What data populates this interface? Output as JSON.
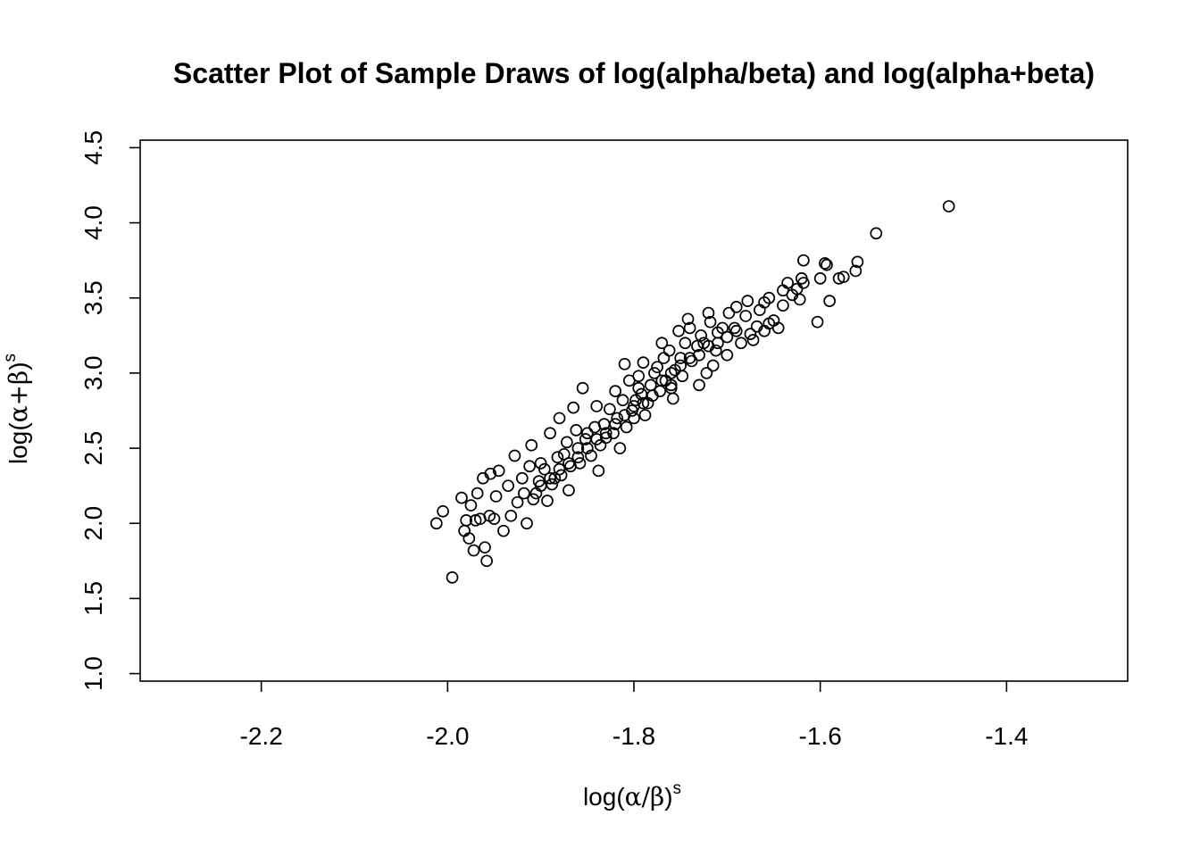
{
  "chart_data": {
    "type": "scatter",
    "title": "Scatter Plot of Sample Draws of log(alpha/beta) and log(alpha+beta)",
    "xlabel": {
      "prefix": "log(",
      "a": "α",
      "op": "/",
      "b": "β",
      "suffix": ")",
      "sup": "s"
    },
    "ylabel": {
      "prefix": "log(",
      "a": "α",
      "op": "+",
      "b": "β",
      "suffix": ")",
      "sup": "s"
    },
    "xlim": [
      -2.33,
      -1.27
    ],
    "ylim": [
      0.95,
      4.55
    ],
    "x_ticks": [
      {
        "value": -2.2,
        "label": "-2.2"
      },
      {
        "value": -2.0,
        "label": "-2.0"
      },
      {
        "value": -1.8,
        "label": "-1.8"
      },
      {
        "value": -1.6,
        "label": "-1.6"
      },
      {
        "value": -1.4,
        "label": "-1.4"
      }
    ],
    "y_ticks": [
      {
        "value": 1.0,
        "label": "1.0"
      },
      {
        "value": 1.5,
        "label": "1.5"
      },
      {
        "value": 2.0,
        "label": "2.0"
      },
      {
        "value": 2.5,
        "label": "2.5"
      },
      {
        "value": 3.0,
        "label": "3.0"
      },
      {
        "value": 3.5,
        "label": "3.5"
      },
      {
        "value": 4.0,
        "label": "4.0"
      },
      {
        "value": 4.5,
        "label": "4.5"
      }
    ],
    "grid": false,
    "legend": "none",
    "marker": "open-circle",
    "points": [
      [
        -1.462,
        4.11
      ],
      [
        -1.54,
        3.93
      ],
      [
        -1.56,
        3.74
      ],
      [
        -1.562,
        3.68
      ],
      [
        -1.575,
        3.64
      ],
      [
        -1.58,
        3.63
      ],
      [
        -1.593,
        3.72
      ],
      [
        -1.595,
        3.73
      ],
      [
        -1.6,
        3.63
      ],
      [
        -1.59,
        3.48
      ],
      [
        -1.603,
        3.34
      ],
      [
        -1.618,
        3.75
      ],
      [
        -1.618,
        3.6
      ],
      [
        -1.62,
        3.63
      ],
      [
        -1.622,
        3.49
      ],
      [
        -1.625,
        3.56
      ],
      [
        -1.63,
        3.52
      ],
      [
        -1.635,
        3.6
      ],
      [
        -1.64,
        3.45
      ],
      [
        -1.645,
        3.3
      ],
      [
        -1.65,
        3.35
      ],
      [
        -1.655,
        3.5
      ],
      [
        -1.66,
        3.28
      ],
      [
        -1.665,
        3.42
      ],
      [
        -1.672,
        3.22
      ],
      [
        -1.68,
        3.38
      ],
      [
        -1.69,
        3.44
      ],
      [
        -1.7,
        3.12
      ],
      [
        -1.705,
        3.3
      ],
      [
        -1.715,
        3.05
      ],
      [
        -1.72,
        3.4
      ],
      [
        -1.725,
        3.2
      ],
      [
        -1.73,
        2.92
      ],
      [
        -1.74,
        3.3
      ],
      [
        -1.742,
        3.36
      ],
      [
        -1.75,
        3.1
      ],
      [
        -1.76,
        2.9
      ],
      [
        -1.77,
        3.2
      ],
      [
        -1.775,
        3.04
      ],
      [
        -1.785,
        2.8
      ],
      [
        -1.79,
        3.07
      ],
      [
        -1.8,
        2.7
      ],
      [
        -1.805,
        2.95
      ],
      [
        -1.81,
        3.06
      ],
      [
        -1.815,
        2.5
      ],
      [
        -1.82,
        2.88
      ],
      [
        -1.83,
        2.57
      ],
      [
        -1.838,
        2.35
      ],
      [
        -1.84,
        2.78
      ],
      [
        -1.85,
        2.6
      ],
      [
        -1.855,
        2.9
      ],
      [
        -1.86,
        2.5
      ],
      [
        -1.865,
        2.77
      ],
      [
        -1.87,
        2.22
      ],
      [
        -1.875,
        2.46
      ],
      [
        -1.88,
        2.7
      ],
      [
        -1.885,
        2.3
      ],
      [
        -1.89,
        2.6
      ],
      [
        -1.893,
        2.15
      ],
      [
        -1.9,
        2.4
      ],
      [
        -1.905,
        2.2
      ],
      [
        -1.91,
        2.52
      ],
      [
        -1.915,
        2.0
      ],
      [
        -1.92,
        2.3
      ],
      [
        -1.925,
        2.14
      ],
      [
        -1.928,
        2.45
      ],
      [
        -1.932,
        2.05
      ],
      [
        -1.935,
        2.25
      ],
      [
        -1.94,
        1.95
      ],
      [
        -1.945,
        2.35
      ],
      [
        -1.948,
        2.18
      ],
      [
        -1.95,
        2.03
      ],
      [
        -1.954,
        2.33
      ],
      [
        -1.955,
        2.05
      ],
      [
        -1.958,
        1.75
      ],
      [
        -1.96,
        1.84
      ],
      [
        -1.962,
        2.3
      ],
      [
        -1.965,
        2.03
      ],
      [
        -1.968,
        2.2
      ],
      [
        -1.97,
        2.02
      ],
      [
        -1.972,
        1.82
      ],
      [
        -1.975,
        2.12
      ],
      [
        -1.977,
        1.9
      ],
      [
        -1.98,
        2.02
      ],
      [
        -1.982,
        1.95
      ],
      [
        -1.985,
        2.17
      ],
      [
        -1.995,
        1.64
      ],
      [
        -2.005,
        2.08
      ],
      [
        -2.012,
        2.0
      ],
      [
        -1.64,
        3.55
      ],
      [
        -1.655,
        3.33
      ],
      [
        -1.66,
        3.47
      ],
      [
        -1.668,
        3.31
      ],
      [
        -1.675,
        3.26
      ],
      [
        -1.678,
        3.48
      ],
      [
        -1.685,
        3.2
      ],
      [
        -1.692,
        3.3
      ],
      [
        -1.698,
        3.4
      ],
      [
        -1.71,
        3.27
      ],
      [
        -1.712,
        3.15
      ],
      [
        -1.718,
        3.34
      ],
      [
        -1.722,
        3.0
      ],
      [
        -1.728,
        3.25
      ],
      [
        -1.732,
        3.18
      ],
      [
        -1.738,
        3.08
      ],
      [
        -1.745,
        3.2
      ],
      [
        -1.748,
        2.98
      ],
      [
        -1.752,
        3.28
      ],
      [
        -1.756,
        3.02
      ],
      [
        -1.758,
        2.83
      ],
      [
        -1.762,
        3.15
      ],
      [
        -1.766,
        2.95
      ],
      [
        -1.768,
        3.1
      ],
      [
        -1.772,
        2.88
      ],
      [
        -1.778,
        3.0
      ],
      [
        -1.782,
        2.92
      ],
      [
        -1.788,
        2.72
      ],
      [
        -1.792,
        2.86
      ],
      [
        -1.795,
        2.98
      ],
      [
        -1.798,
        2.82
      ],
      [
        -1.802,
        2.75
      ],
      [
        -1.808,
        2.64
      ],
      [
        -1.812,
        2.82
      ],
      [
        -1.818,
        2.7
      ],
      [
        -1.822,
        2.6
      ],
      [
        -1.826,
        2.76
      ],
      [
        -1.832,
        2.66
      ],
      [
        -1.836,
        2.52
      ],
      [
        -1.842,
        2.64
      ],
      [
        -1.846,
        2.45
      ],
      [
        -1.852,
        2.56
      ],
      [
        -1.858,
        2.4
      ],
      [
        -1.862,
        2.62
      ],
      [
        -1.868,
        2.38
      ],
      [
        -1.872,
        2.54
      ],
      [
        -1.878,
        2.32
      ],
      [
        -1.882,
        2.44
      ],
      [
        -1.888,
        2.26
      ],
      [
        -1.896,
        2.36
      ],
      [
        -1.902,
        2.28
      ],
      [
        -1.908,
        2.16
      ],
      [
        -1.912,
        2.38
      ],
      [
        -1.918,
        2.2
      ],
      [
        -1.79,
        2.8
      ],
      [
        -1.795,
        2.9
      ],
      [
        -1.78,
        2.85
      ],
      [
        -1.77,
        2.95
      ],
      [
        -1.76,
        3.0
      ],
      [
        -1.75,
        3.05
      ],
      [
        -1.81,
        2.72
      ],
      [
        -1.8,
        2.78
      ],
      [
        -1.82,
        2.66
      ],
      [
        -1.83,
        2.6
      ],
      [
        -1.76,
        2.92
      ],
      [
        -1.74,
        3.1
      ],
      [
        -1.73,
        3.12
      ],
      [
        -1.72,
        3.18
      ],
      [
        -1.71,
        3.2
      ],
      [
        -1.7,
        3.24
      ],
      [
        -1.69,
        3.28
      ],
      [
        -1.84,
        2.56
      ],
      [
        -1.85,
        2.5
      ],
      [
        -1.86,
        2.44
      ],
      [
        -1.87,
        2.4
      ],
      [
        -1.88,
        2.36
      ],
      [
        -1.89,
        2.3
      ],
      [
        -1.9,
        2.25
      ]
    ]
  }
}
